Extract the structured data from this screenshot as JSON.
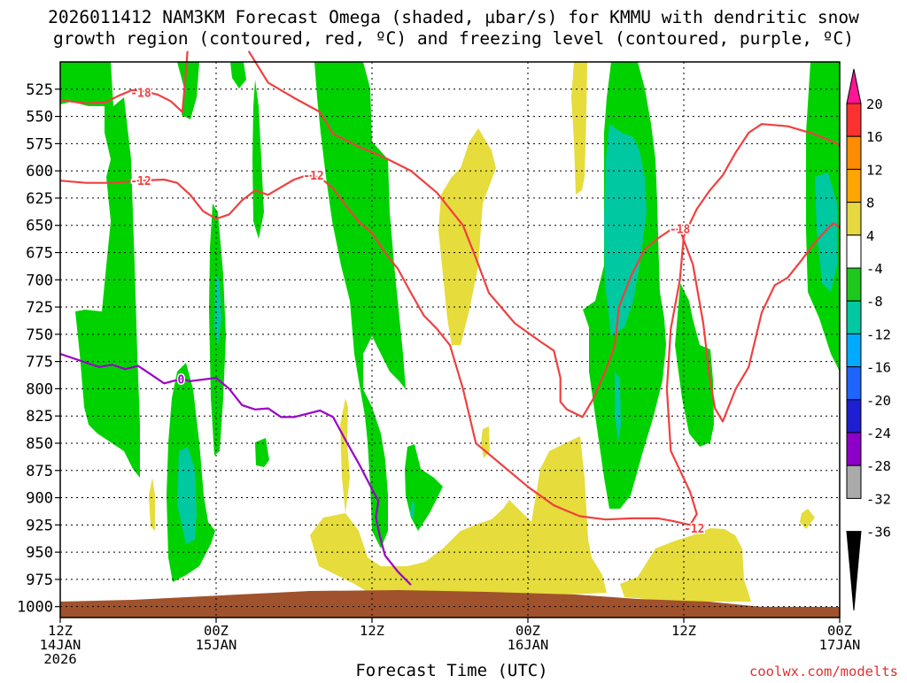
{
  "chart_data": {
    "type": "heatmap",
    "title_line1": "2026011412 NAM3KM Forecast Omega (shaded, µbar/s) for KMMU with dendritic snow",
    "title_line2": "growth region (contoured, red, ºC) and freezing level (contoured, purple, ºC)",
    "xlabel": "Forecast Time (UTC)",
    "credit": "coolwx.com/modelts",
    "x_ticks": [
      {
        "h": 0,
        "line1": "12Z",
        "line2": "14JAN",
        "line3": "2026"
      },
      {
        "h": 12,
        "line1": "00Z",
        "line2": "15JAN",
        "line3": ""
      },
      {
        "h": 24,
        "line1": "12Z",
        "line2": "",
        "line3": ""
      },
      {
        "h": 36,
        "line1": "00Z",
        "line2": "16JAN",
        "line3": ""
      },
      {
        "h": 48,
        "line1": "12Z",
        "line2": "",
        "line3": ""
      },
      {
        "h": 60,
        "line1": "00Z",
        "line2": "17JAN",
        "line3": ""
      }
    ],
    "x_range_hours": [
      0,
      60
    ],
    "y_levels_hpa": [
      525,
      550,
      575,
      600,
      625,
      650,
      675,
      700,
      725,
      750,
      775,
      800,
      825,
      850,
      875,
      900,
      925,
      950,
      975,
      1000
    ],
    "y_range_hpa": [
      500,
      1010
    ],
    "grid": true,
    "colorbar_labels": [
      "20",
      "16",
      "12",
      "8",
      "4",
      "-4",
      "-8",
      "-12",
      "-16",
      "-20",
      "-24",
      "-28",
      "-32",
      "-36"
    ],
    "colorbar_colors": [
      "#ff1493",
      "#ff3030",
      "#ff8c00",
      "#ffa500",
      "#e6d840",
      "#ffffff",
      "#1ec81e",
      "#00c8a0",
      "#00aaff",
      "#1e64ff",
      "#1e1ed2",
      "#8c00c8",
      "#aaaaaa",
      "#000000"
    ],
    "shading_colors": {
      "green": "#00d200",
      "teal": "#00c8a0",
      "cyan": "#00c8c8",
      "yellow": "#e6dc3c",
      "terrain": "#a0522d"
    },
    "contour_colors": {
      "dgz": "#f04040",
      "freezing": "#9b00c8"
    },
    "contour_labels": [
      {
        "text": "-18",
        "h": 6.2,
        "p": 528
      },
      {
        "text": "-12",
        "h": 6.2,
        "p": 609
      },
      {
        "text": "-12",
        "h": 19.5,
        "p": 604
      },
      {
        "text": "-18",
        "h": 47.7,
        "p": 653
      },
      {
        "text": "-12",
        "h": 48.8,
        "p": 928
      },
      {
        "text": "0",
        "h": 9.3,
        "p": 791
      }
    ],
    "series": [
      {
        "name": "-12",
        "kind": "dgz",
        "points": [
          [
            0,
            609
          ],
          [
            2,
            611
          ],
          [
            4,
            611
          ],
          [
            6,
            609
          ],
          [
            8,
            608
          ],
          [
            9,
            611
          ],
          [
            10,
            622
          ],
          [
            11,
            637
          ],
          [
            12,
            644
          ],
          [
            13,
            640
          ],
          [
            14,
            627
          ],
          [
            15,
            618
          ],
          [
            16,
            622
          ],
          [
            17,
            615
          ],
          [
            18,
            608
          ],
          [
            19,
            604
          ],
          [
            20,
            606
          ],
          [
            21,
            616
          ],
          [
            22,
            632
          ],
          [
            23,
            647
          ],
          [
            24,
            657
          ],
          [
            25,
            675
          ],
          [
            26,
            690
          ],
          [
            27,
            712
          ],
          [
            28,
            733
          ],
          [
            29,
            745
          ],
          [
            30,
            760
          ],
          [
            31,
            800
          ],
          [
            31.5,
            825
          ],
          [
            32,
            850
          ],
          [
            34,
            870
          ],
          [
            36,
            890
          ],
          [
            38,
            907
          ],
          [
            40,
            917
          ],
          [
            42,
            920
          ],
          [
            44,
            919
          ],
          [
            46,
            919
          ],
          [
            47,
            921
          ],
          [
            48.5,
            925
          ],
          [
            49,
            915
          ],
          [
            48.5,
            895
          ],
          [
            47,
            857
          ],
          [
            46.7,
            800
          ],
          [
            47,
            745
          ],
          [
            47.7,
            700
          ],
          [
            48,
            660
          ],
          [
            49,
            635
          ],
          [
            50,
            618
          ],
          [
            51,
            604
          ],
          [
            52,
            583
          ],
          [
            53,
            565
          ],
          [
            54,
            557
          ],
          [
            56,
            559
          ],
          [
            58,
            566
          ],
          [
            60,
            576
          ]
        ]
      },
      {
        "name": "-18",
        "kind": "dgz",
        "points": [
          [
            0,
            535
          ],
          [
            2,
            538
          ],
          [
            3.5,
            537
          ],
          [
            4.5,
            531
          ],
          [
            5.5,
            526
          ],
          [
            6.5,
            527
          ],
          [
            7.5,
            530
          ],
          [
            8.5,
            536
          ],
          [
            9.4,
            546
          ],
          [
            9.6,
            520
          ],
          [
            9.8,
            490
          ]
        ]
      },
      {
        "name": "-18",
        "kind": "dgz",
        "points": [
          [
            14.5,
            490
          ],
          [
            16,
            519
          ],
          [
            18,
            533
          ],
          [
            20,
            546
          ],
          [
            21,
            566
          ],
          [
            23,
            578
          ],
          [
            25,
            588
          ],
          [
            27,
            600
          ],
          [
            29,
            620
          ],
          [
            31,
            650
          ],
          [
            32,
            680
          ],
          [
            33,
            712
          ],
          [
            35,
            740
          ],
          [
            37,
            757
          ],
          [
            38,
            765
          ],
          [
            38.5,
            790
          ],
          [
            38.5,
            812
          ],
          [
            39,
            819
          ],
          [
            40.2,
            826
          ],
          [
            41,
            810
          ],
          [
            42,
            783
          ],
          [
            42.7,
            760
          ],
          [
            43,
            725
          ],
          [
            44,
            695
          ],
          [
            45,
            672
          ],
          [
            46,
            662
          ],
          [
            47,
            654
          ],
          [
            47.7,
            654
          ]
        ]
      },
      {
        "name": "-18",
        "kind": "dgz",
        "points": [
          [
            47.7,
            654
          ],
          [
            48.7,
            686
          ],
          [
            49.5,
            740
          ],
          [
            50,
            790
          ],
          [
            50.4,
            818
          ],
          [
            51,
            830
          ],
          [
            52,
            800
          ],
          [
            53,
            780
          ],
          [
            54,
            730
          ],
          [
            55,
            705
          ],
          [
            56,
            698
          ],
          [
            57,
            683
          ],
          [
            58,
            667
          ],
          [
            59,
            654
          ],
          [
            59.5,
            648
          ],
          [
            60,
            652
          ]
        ]
      },
      {
        "name": "0",
        "kind": "freezing",
        "points": [
          [
            0,
            768
          ],
          [
            2,
            776
          ],
          [
            3,
            780
          ],
          [
            4,
            778
          ],
          [
            5,
            782
          ],
          [
            6,
            779
          ],
          [
            7,
            787
          ],
          [
            8,
            795
          ],
          [
            9.3,
            791
          ],
          [
            10,
            793
          ],
          [
            12,
            790
          ],
          [
            13,
            800
          ],
          [
            14,
            815
          ],
          [
            15,
            819
          ],
          [
            16,
            818
          ],
          [
            17,
            826
          ],
          [
            18,
            826
          ],
          [
            19,
            823
          ],
          [
            20,
            820
          ],
          [
            21,
            826
          ],
          [
            22,
            848
          ],
          [
            23,
            869
          ],
          [
            24,
            892
          ],
          [
            24.5,
            903
          ],
          [
            24.3,
            918
          ],
          [
            24.6,
            935
          ],
          [
            25,
            953
          ],
          [
            26,
            968
          ],
          [
            27,
            980
          ]
        ]
      }
    ]
  }
}
